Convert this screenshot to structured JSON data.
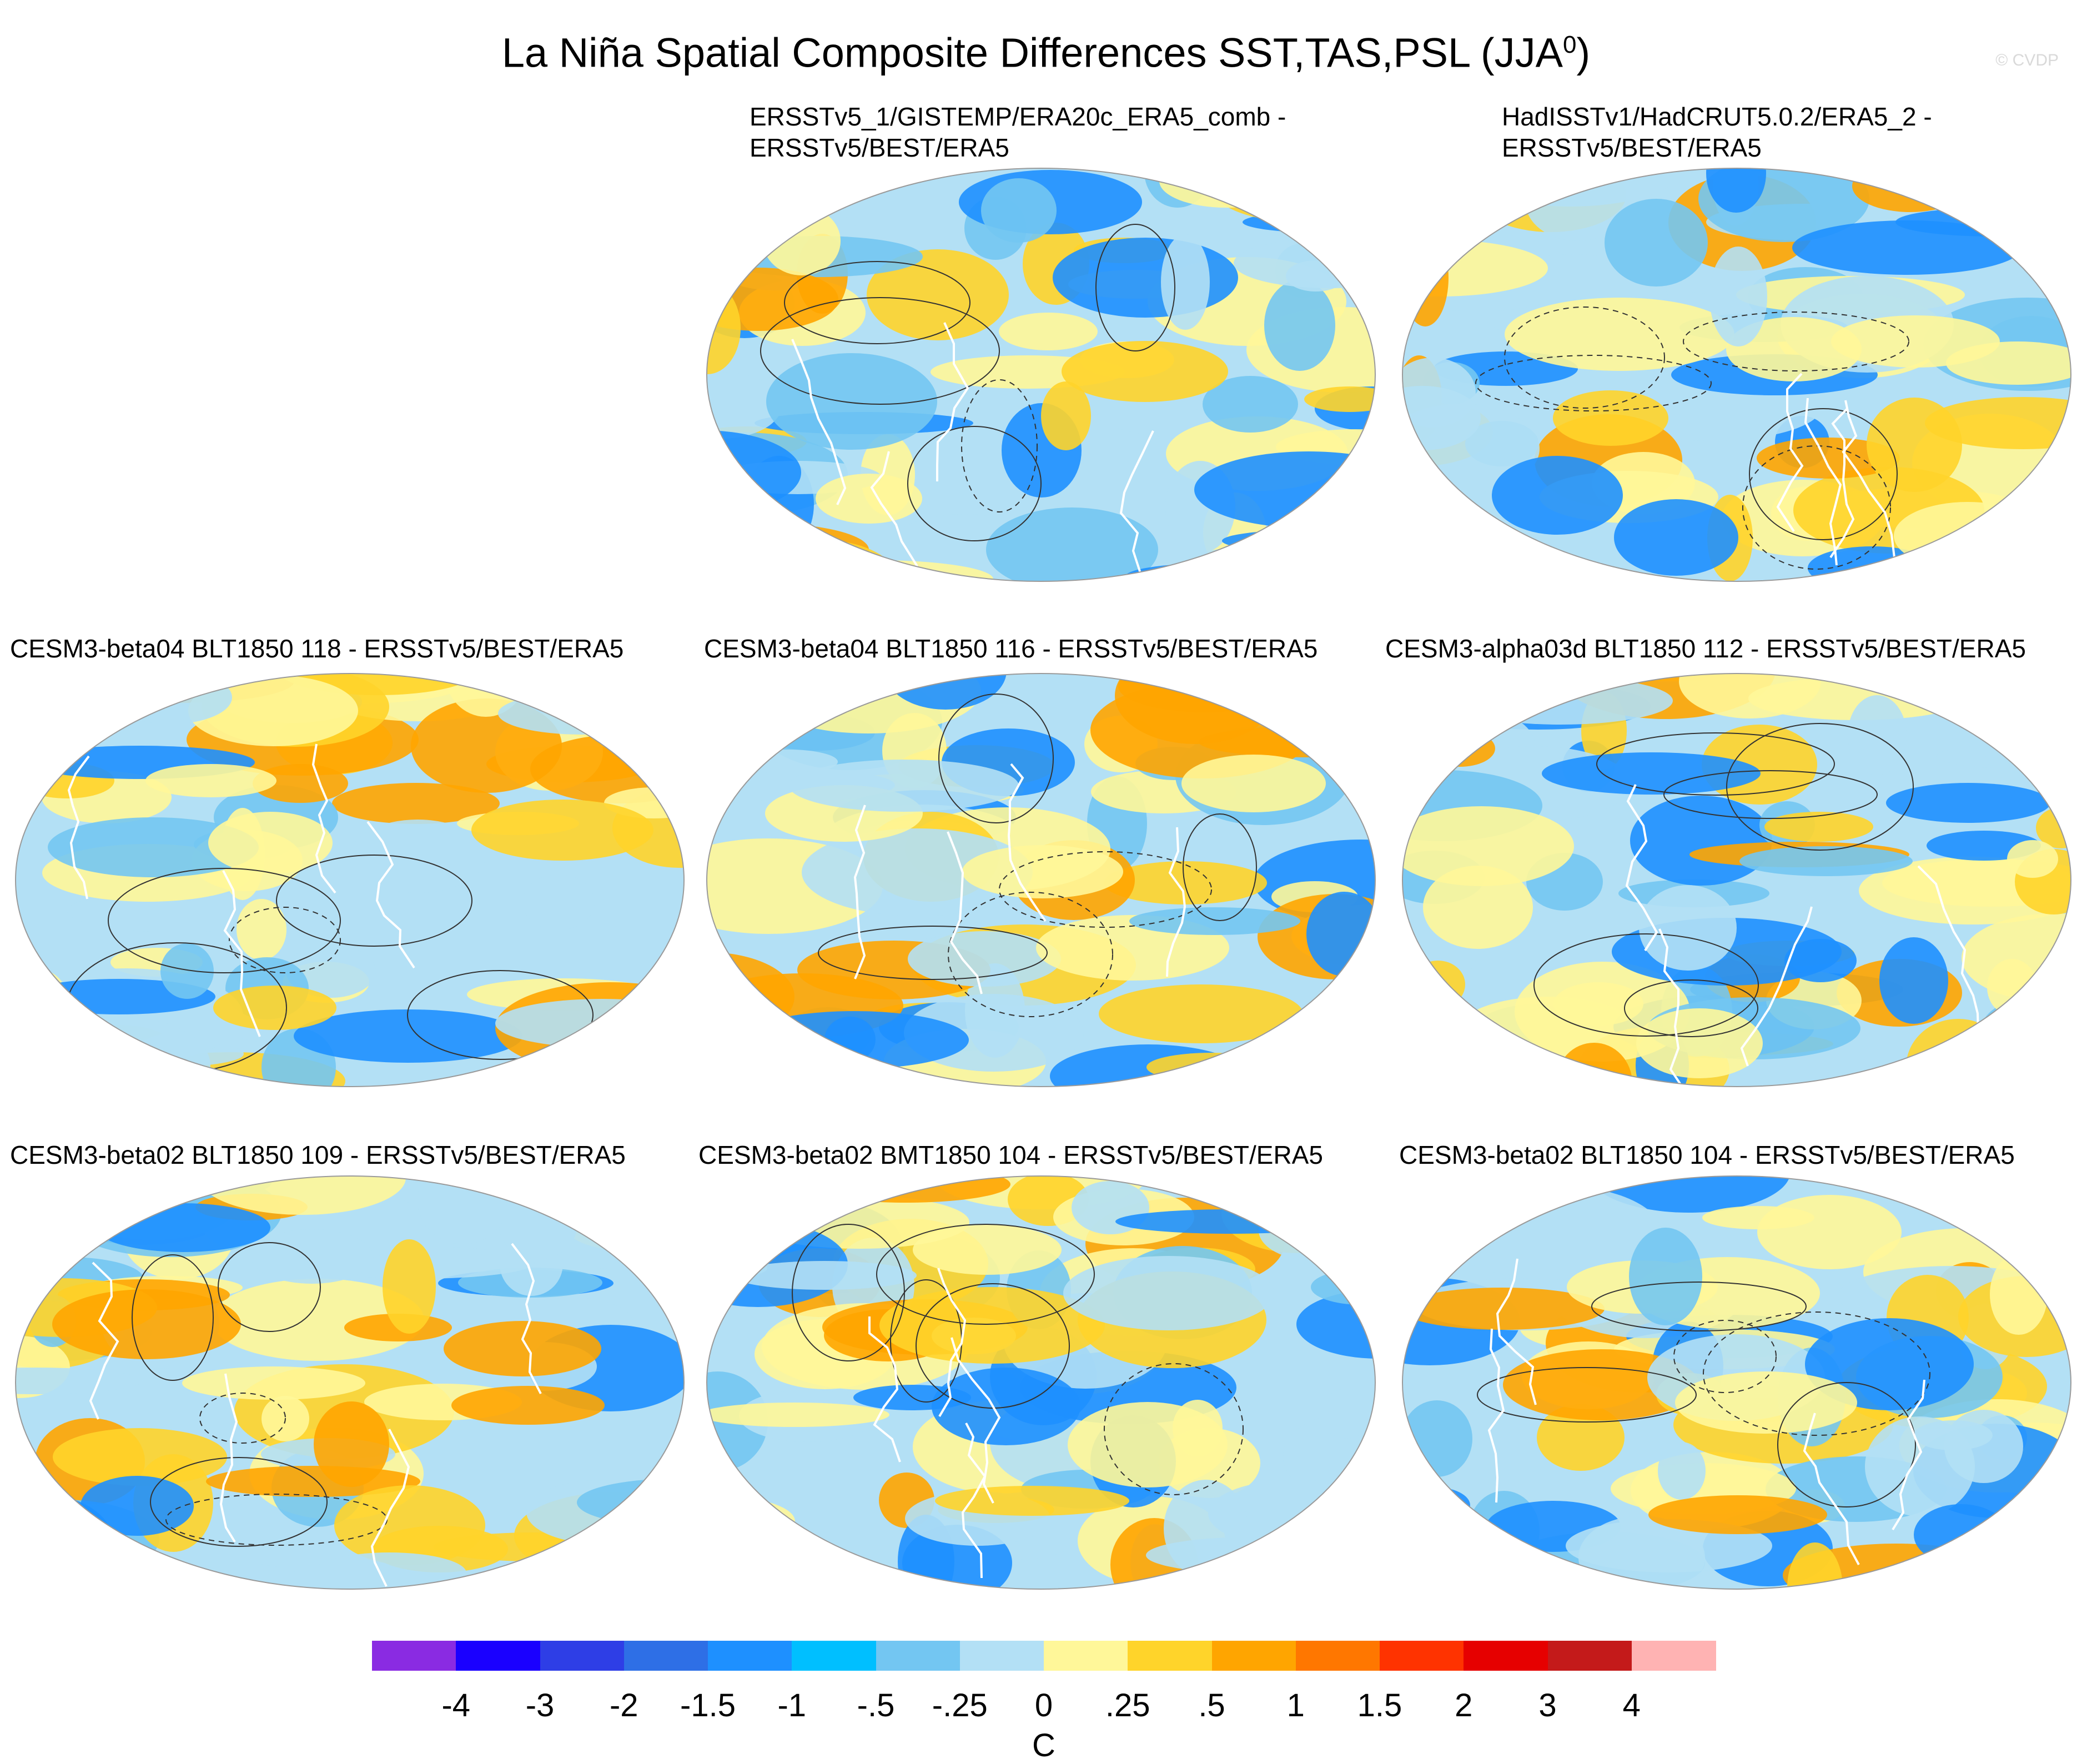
{
  "figure": {
    "title": "La Niña Spatial Composite Differences SST,TAS,PSL (JJA",
    "title_superscript": "0",
    "title_close": ")",
    "watermark": "© CVDP"
  },
  "panels": [
    {
      "line1": "ERSSTv5_1/GISTEMP/ERA20c_ERA5_comb -",
      "line2": "ERSSTv5/BEST/ERA5"
    },
    {
      "line1": "HadISSTv1/HadCRUT5.0.2/ERA5_2 -",
      "line2": "ERSSTv5/BEST/ERA5"
    },
    {
      "line1": "CESM3-beta04 BLT1850 118 - ERSSTv5/BEST/ERA5"
    },
    {
      "line1": "CESM3-beta04 BLT1850 116 - ERSSTv5/BEST/ERA5"
    },
    {
      "line1": "CESM3-alpha03d BLT1850 112 - ERSSTv5/BEST/ERA5"
    },
    {
      "line1": "CESM3-beta02 BLT1850 109 - ERSSTv5/BEST/ERA5"
    },
    {
      "line1": "CESM3-beta02 BMT1850 104 - ERSSTv5/BEST/ERA5"
    },
    {
      "line1": "CESM3-beta02 BLT1850 104 - ERSSTv5/BEST/ERA5"
    }
  ],
  "colorbar": {
    "unit": "C",
    "labels": [
      "-4",
      "-3",
      "-2",
      "-1.5",
      "-1",
      "-.5",
      "-.25",
      "0",
      ".25",
      ".5",
      "1",
      "1.5",
      "2",
      "3",
      "4"
    ],
    "colors": [
      "#8a2be2",
      "#1a00ff",
      "#2e3ee6",
      "#2e6fe6",
      "#1e90ff",
      "#00bfff",
      "#73c6f2",
      "#b3e0f5",
      "#fff799",
      "#ffd42a",
      "#ffa500",
      "#ff7700",
      "#ff3300",
      "#e60000",
      "#c41a1a",
      "#ffb3b3"
    ]
  }
}
